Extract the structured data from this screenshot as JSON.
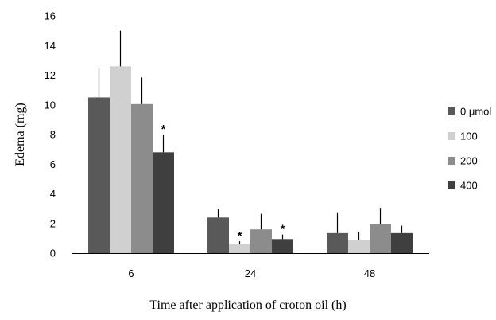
{
  "chart_data": {
    "type": "bar",
    "xlabel": "Time after application of croton oil (h)",
    "ylabel": "Edema (mg)",
    "ylim": [
      0,
      16
    ],
    "yticks": [
      0,
      2,
      4,
      6,
      8,
      10,
      12,
      14,
      16
    ],
    "categories": [
      "6",
      "24",
      "48"
    ],
    "legend_position": "right",
    "grid": false,
    "significance_marker": "*",
    "series": [
      {
        "name": "0 μmol",
        "color": "#595959",
        "values": [
          10.5,
          2.4,
          1.35
        ],
        "errors": [
          2.0,
          0.55,
          1.4
        ],
        "significant": [
          false,
          false,
          false
        ]
      },
      {
        "name": "100",
        "color": "#d0d0d0",
        "values": [
          12.6,
          0.6,
          0.9
        ],
        "errors": [
          2.4,
          0.2,
          0.55
        ],
        "significant": [
          false,
          true,
          false
        ]
      },
      {
        "name": "200",
        "color": "#8c8c8c",
        "values": [
          10.05,
          1.6,
          1.95
        ],
        "errors": [
          1.8,
          1.05,
          1.1
        ],
        "significant": [
          false,
          false,
          false
        ]
      },
      {
        "name": "400",
        "color": "#3f3f3f",
        "values": [
          6.8,
          0.95,
          1.35
        ],
        "errors": [
          1.2,
          0.3,
          0.5
        ],
        "significant": [
          true,
          true,
          false
        ]
      }
    ]
  }
}
